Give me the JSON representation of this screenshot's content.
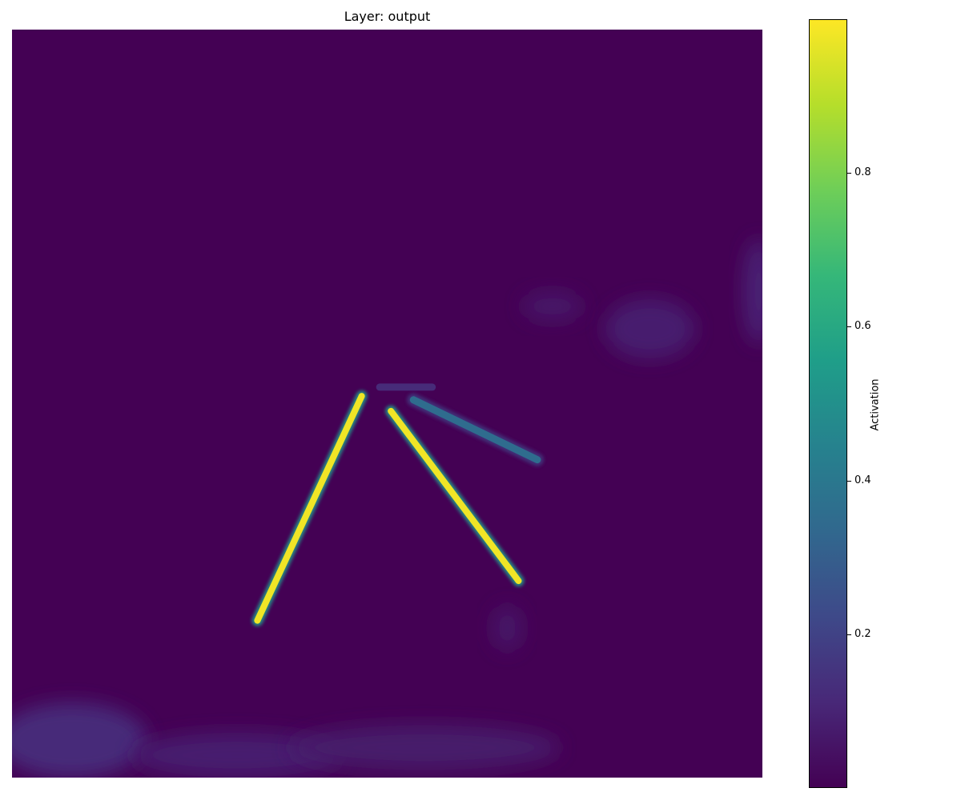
{
  "figure": {
    "title": "Layer: output"
  },
  "chart_data": {
    "type": "heatmap",
    "title": "Layer: output",
    "colormap": "viridis",
    "colormap_stops": [
      "#440154",
      "#482878",
      "#3e4989",
      "#31688e",
      "#26828e",
      "#1f9e89",
      "#35b779",
      "#6ece58",
      "#b5de2b",
      "#fde725"
    ],
    "vmin": 0.0,
    "vmax": 1.0,
    "background_value": 0.0,
    "features": [
      {
        "kind": "line",
        "from": [
          0.466,
          0.49
        ],
        "to": [
          0.327,
          0.79
        ],
        "value": 0.98
      },
      {
        "kind": "line",
        "from": [
          0.505,
          0.51
        ],
        "to": [
          0.675,
          0.737
        ],
        "value": 0.98
      },
      {
        "kind": "line",
        "from": [
          0.535,
          0.495
        ],
        "to": [
          0.7,
          0.575
        ],
        "value": 0.35
      },
      {
        "kind": "line",
        "from": [
          0.49,
          0.478
        ],
        "to": [
          0.56,
          0.478
        ],
        "value": 0.12
      }
    ],
    "axes_visible": false,
    "colorbar": {
      "label": "Activation",
      "ticks": [
        0.2,
        0.4,
        0.6,
        0.8
      ],
      "tick_labels": [
        "0.2",
        "0.4",
        "0.6",
        "0.8"
      ],
      "range": [
        0.0,
        1.0
      ],
      "orientation": "vertical",
      "placement": "right"
    }
  }
}
